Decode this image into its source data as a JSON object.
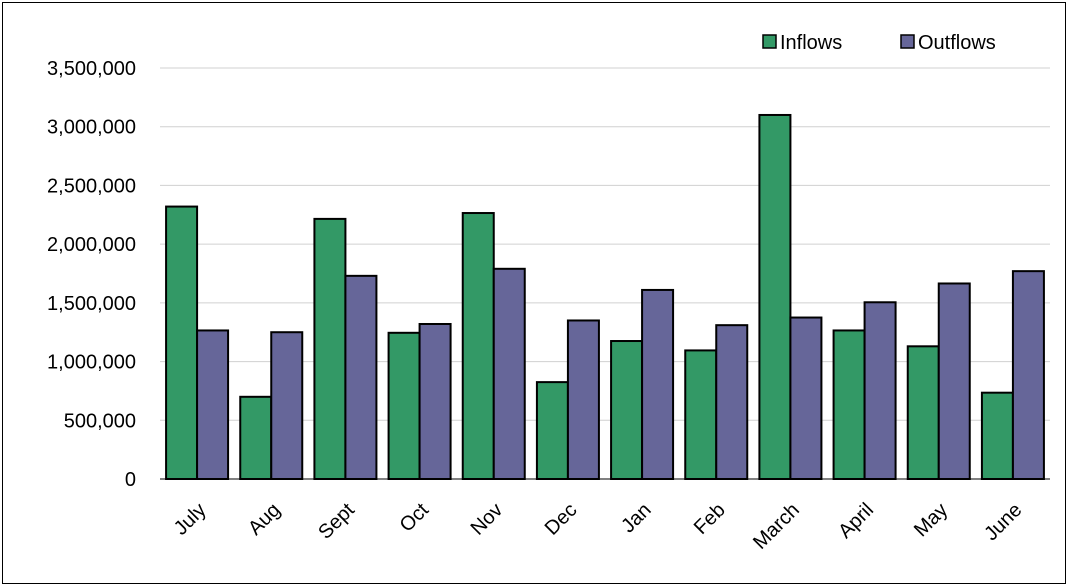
{
  "chart_data": {
    "type": "bar",
    "title": "",
    "xlabel": "",
    "ylabel": "",
    "categories": [
      "July",
      "Aug",
      "Sept",
      "Oct",
      "Nov",
      "Dec",
      "Jan",
      "Feb",
      "March",
      "April",
      "May",
      "June"
    ],
    "series": [
      {
        "name": "Inflows",
        "color": "#339966",
        "values": [
          2320000,
          700000,
          2215000,
          1245000,
          2265000,
          825000,
          1175000,
          1095000,
          3100000,
          1265000,
          1130000,
          735000
        ]
      },
      {
        "name": "Outflows",
        "color": "#666699",
        "values": [
          1265000,
          1250000,
          1730000,
          1320000,
          1790000,
          1350000,
          1610000,
          1310000,
          1375000,
          1505000,
          1665000,
          1770000
        ]
      }
    ],
    "ylim": [
      0,
      3500000
    ],
    "yticks": [
      "0",
      "500,000",
      "1,000,000",
      "1,500,000",
      "2,000,000",
      "2,500,000",
      "3,000,000",
      "3,500,000"
    ],
    "grid": true,
    "legend_position": "top-right"
  }
}
